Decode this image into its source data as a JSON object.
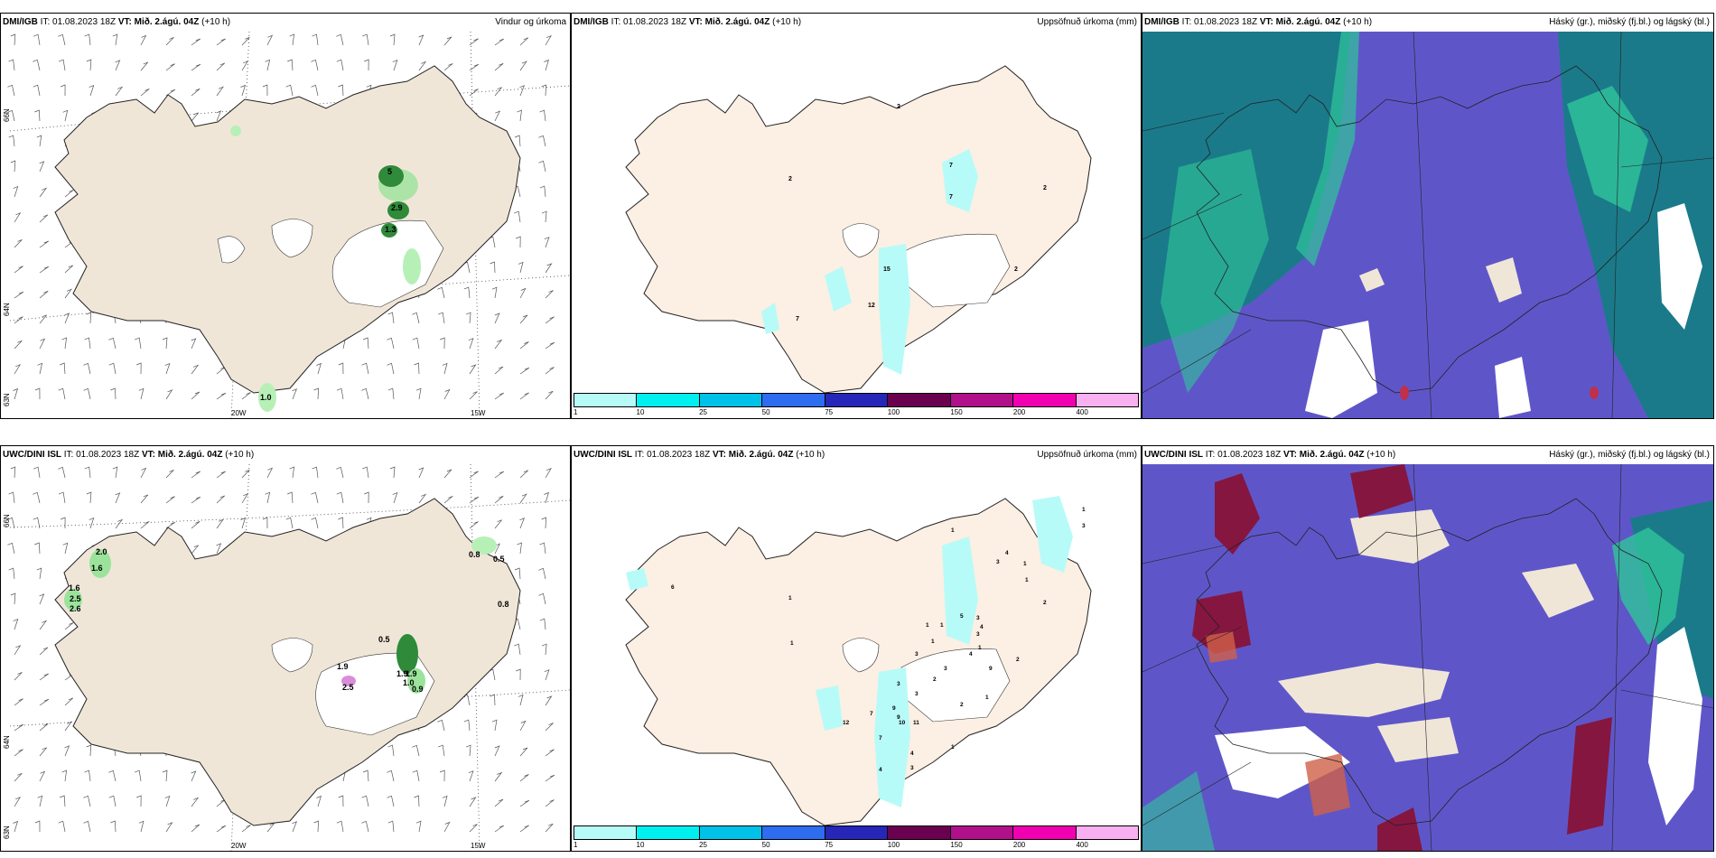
{
  "panels": [
    {
      "id": "p1",
      "model": "DMI/IGB",
      "it": "IT: 01.08.2023 18Z",
      "vt_label": "VT:",
      "vt": "Mið. 2.ágú. 04Z",
      "lead": "(+10 h)",
      "title": "Vindur og úrkoma"
    },
    {
      "id": "p2",
      "model": "DMI/IGB",
      "it": "IT: 01.08.2023 18Z",
      "vt_label": "VT:",
      "vt": "Mið. 2.ágú. 04Z",
      "lead": "(+10 h)",
      "title": "Uppsöfnuð úrkoma (mm)"
    },
    {
      "id": "p3",
      "model": "DMI/IGB",
      "it": "IT: 01.08.2023 18Z",
      "vt_label": "VT:",
      "vt": "Mið. 2.ágú. 04Z",
      "lead": "(+10 h)",
      "title": "Háský (gr.), miðský (fj.bl.) og lágský (bl.)"
    },
    {
      "id": "p4",
      "model": "UWC/DINI ISL",
      "it": "IT: 01.08.2023 18Z",
      "vt_label": "VT:",
      "vt": "Mið. 2.ágú. 04Z",
      "lead": "(+10 h)",
      "title": ""
    },
    {
      "id": "p5",
      "model": "UWC/DINI ISL",
      "it": "IT: 01.08.2023 18Z",
      "vt_label": "VT:",
      "vt": "Mið. 2.ágú. 04Z",
      "lead": "(+10 h)",
      "title": "Uppsöfnuð úrkoma (mm)"
    },
    {
      "id": "p6",
      "model": "UWC/DINI ISL",
      "it": "IT: 01.08.2023 18Z",
      "vt_label": "VT:",
      "vt": "Mið. 2.ágú. 04Z",
      "lead": "(+10 h)",
      "title": "Háský (gr.), miðský (fj.bl.) og lágský (bl.)"
    }
  ],
  "axes": {
    "lat_66": "66N",
    "lat_64": "64N",
    "lat_62": "63N",
    "lon_20": "20W",
    "lon_15": "15W"
  },
  "legend": {
    "ticks": [
      "1",
      "10",
      "25",
      "50",
      "75",
      "100",
      "150",
      "200",
      "400"
    ],
    "colors": [
      "#b7fbf8",
      "#00f0f0",
      "#00c2e8",
      "#2e6cf0",
      "#2626b8",
      "#6a0050",
      "#b0108a",
      "#f000b0",
      "#f8b0f0"
    ]
  },
  "p1_labels": [
    "5",
    "2.9",
    "1.3",
    "1.0"
  ],
  "p2_labels": [
    "2",
    "7",
    "7",
    "2",
    "2",
    "15",
    "12",
    "7",
    "2"
  ],
  "p4_labels": [
    "2.0",
    "1.6",
    "1.6",
    "2.5",
    "2.6",
    "0.8",
    "0.5",
    "0.8",
    "0.5",
    "1.9",
    "1.9",
    "1.9",
    "1.0",
    "0.9",
    "2.5"
  ],
  "p5_labels": [
    "1",
    "4",
    "3",
    "1",
    "1",
    "2",
    "1",
    "5",
    "3",
    "4",
    "3",
    "1",
    "4",
    "1",
    "1",
    "1",
    "2",
    "3",
    "9",
    "3",
    "1",
    "2",
    "3",
    "3",
    "2",
    "7",
    "9",
    "12",
    "10",
    "11",
    "9",
    "7",
    "1",
    "4",
    "3",
    "4",
    "6",
    "1",
    "1",
    "3"
  ],
  "colors": {
    "land": "#f0e6d8",
    "land_p2": "#fcefe3",
    "cloud_high": "#1a7a8a",
    "cloud_mid": "#5e56c8",
    "precip_green": "#2f8a3a"
  }
}
